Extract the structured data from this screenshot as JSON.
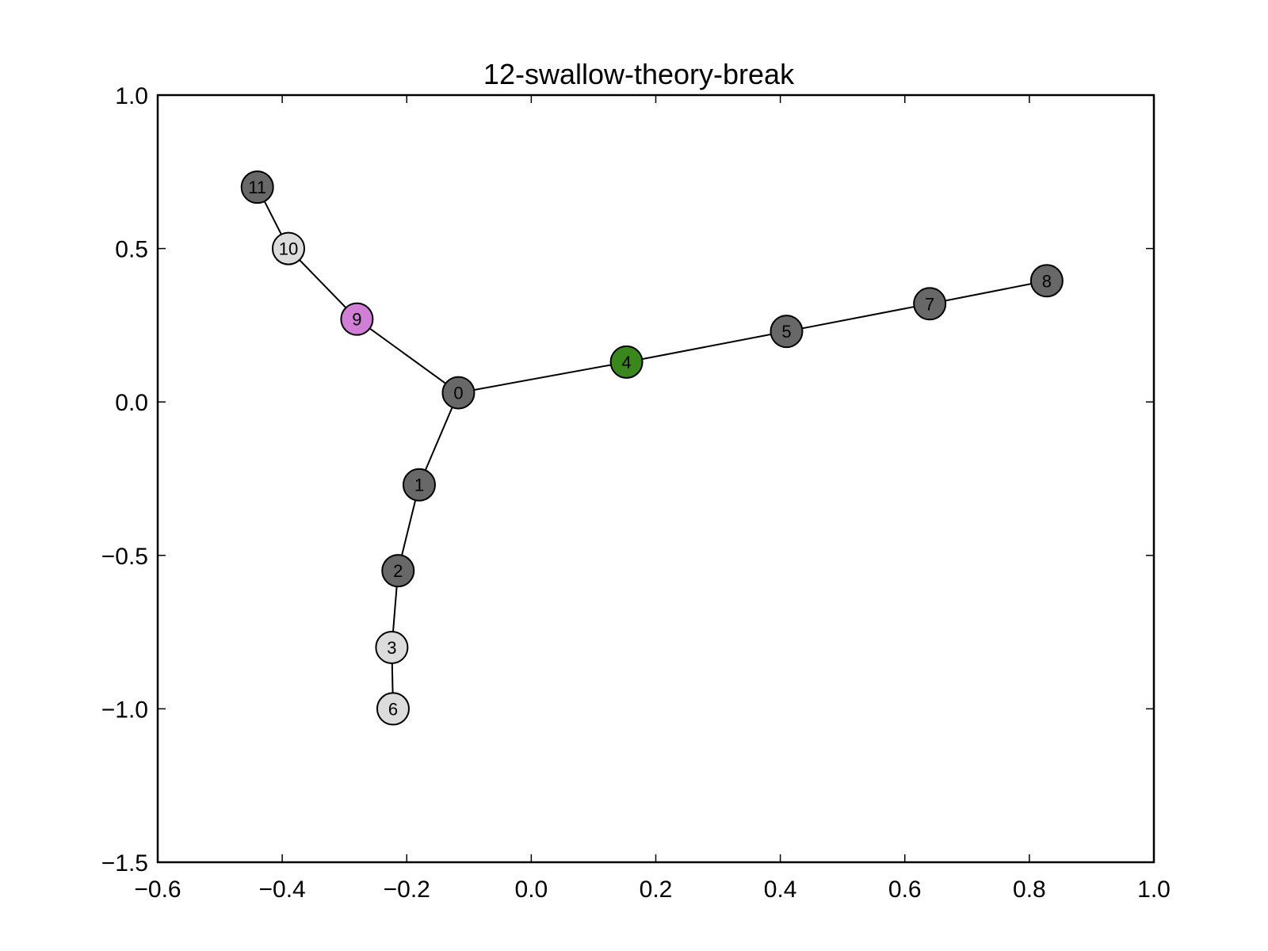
{
  "chart_data": {
    "type": "scatter",
    "subtype": "network-graph",
    "title": "12-swallow-theory-break",
    "xlabel": "",
    "ylabel": "",
    "xlim": [
      -0.6,
      1.0
    ],
    "ylim": [
      -1.5,
      1.0
    ],
    "x_ticks": [
      -0.6,
      -0.4,
      -0.2,
      0.0,
      0.2,
      0.4,
      0.6,
      0.8,
      1.0
    ],
    "x_tick_labels": [
      "−0.6",
      "−0.4",
      "−0.2",
      "0.0",
      "0.2",
      "0.4",
      "0.6",
      "0.8",
      "1.0"
    ],
    "y_ticks": [
      1.0,
      0.5,
      0.0,
      -0.5,
      -1.0,
      -1.5
    ],
    "y_tick_labels": [
      "1.0",
      "0.5",
      "0.0",
      "−0.5",
      "−1.0",
      "−1.5"
    ],
    "grid": false,
    "legend": "none",
    "colors": {
      "dark_gray": "#686868",
      "light_gray": "#dcdcdc",
      "green": "#3a871d",
      "violet": "#d17ed6"
    },
    "nodes": [
      {
        "id": "0",
        "x": -0.117,
        "y": 0.03,
        "color": "#686868"
      },
      {
        "id": "1",
        "x": -0.18,
        "y": -0.27,
        "color": "#686868"
      },
      {
        "id": "2",
        "x": -0.214,
        "y": -0.55,
        "color": "#686868"
      },
      {
        "id": "3",
        "x": -0.224,
        "y": -0.8,
        "color": "#dcdcdc"
      },
      {
        "id": "4",
        "x": 0.153,
        "y": 0.13,
        "color": "#3a871d"
      },
      {
        "id": "5",
        "x": 0.41,
        "y": 0.23,
        "color": "#686868"
      },
      {
        "id": "6",
        "x": -0.222,
        "y": -1.0,
        "color": "#dcdcdc"
      },
      {
        "id": "7",
        "x": 0.64,
        "y": 0.32,
        "color": "#686868"
      },
      {
        "id": "8",
        "x": 0.828,
        "y": 0.395,
        "color": "#686868"
      },
      {
        "id": "9",
        "x": -0.28,
        "y": 0.27,
        "color": "#d17ed6"
      },
      {
        "id": "10",
        "x": -0.39,
        "y": 0.5,
        "color": "#dcdcdc"
      },
      {
        "id": "11",
        "x": -0.44,
        "y": 0.7,
        "color": "#686868"
      }
    ],
    "edges": [
      [
        "0",
        "1"
      ],
      [
        "1",
        "2"
      ],
      [
        "2",
        "3"
      ],
      [
        "3",
        "6"
      ],
      [
        "0",
        "4"
      ],
      [
        "4",
        "5"
      ],
      [
        "5",
        "7"
      ],
      [
        "7",
        "8"
      ],
      [
        "0",
        "9"
      ],
      [
        "9",
        "10"
      ],
      [
        "10",
        "11"
      ]
    ]
  }
}
